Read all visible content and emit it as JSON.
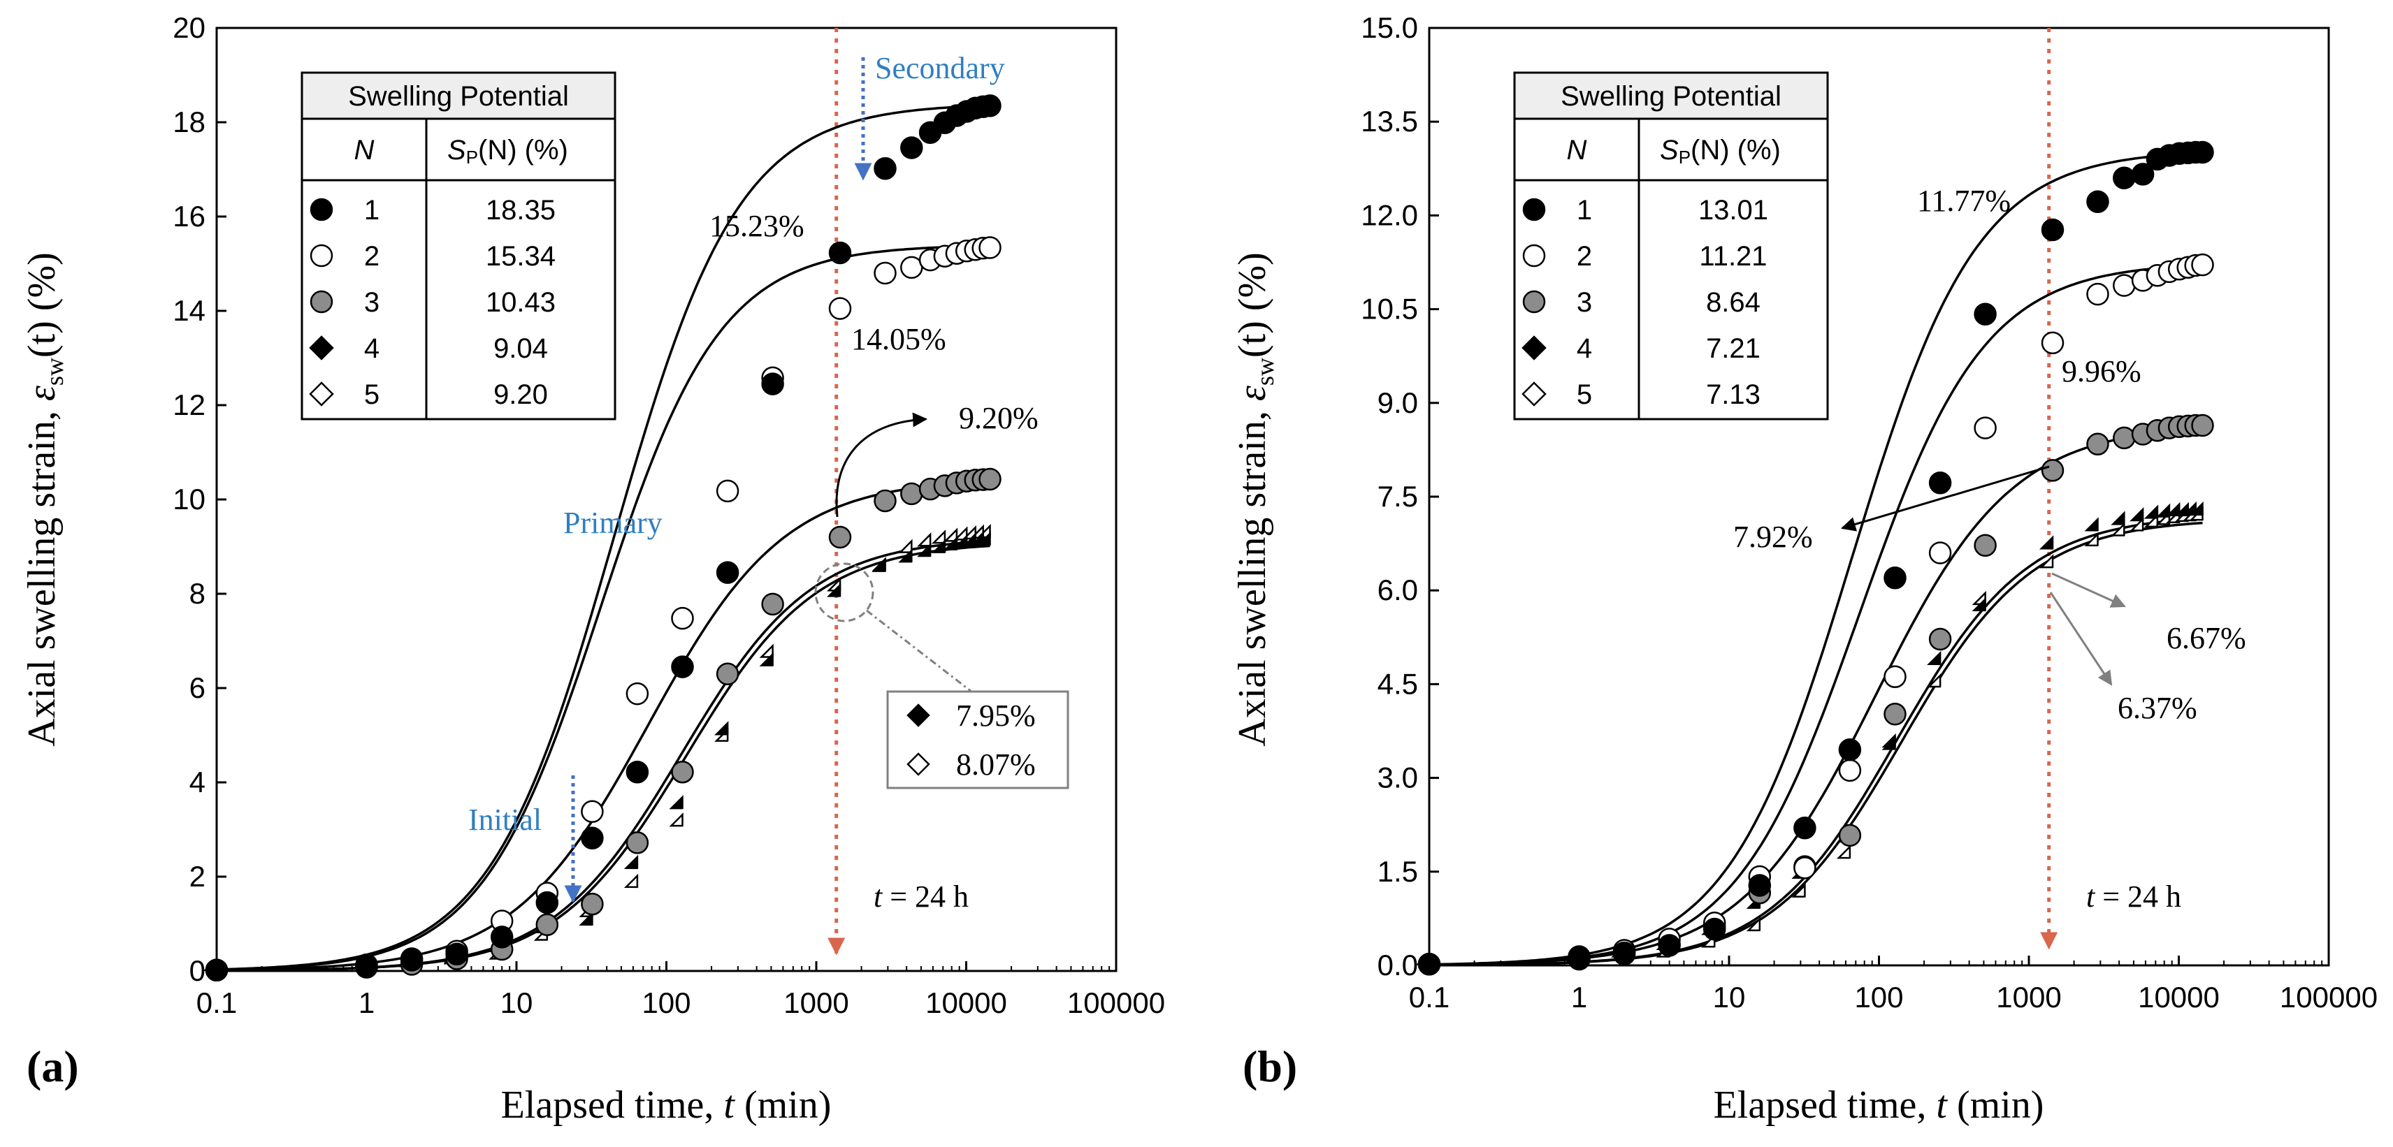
{
  "colors": {
    "axis": "#000000",
    "curve": "#000000",
    "marker_filled_dark": "#000000",
    "marker_filled_gray": "#8c8c8c",
    "marker_open": "#ffffff",
    "guide_line": "#d9664d",
    "stage_label": "#2f7fc1",
    "arrow_blue": "#4472c4",
    "arrow_gray": "#808080",
    "legend_header_bg": "#eeeeee"
  },
  "chart_data": [
    {
      "type": "scatter",
      "panel_label": "(a)",
      "xscale": "log",
      "xlim": [
        0.1,
        100000
      ],
      "ylim": [
        0,
        20
      ],
      "xticks": [
        "0.1",
        "1",
        "10",
        "100",
        "1000",
        "10000",
        "100000"
      ],
      "yticks": [
        "0",
        "2",
        "4",
        "6",
        "8",
        "10",
        "12",
        "14",
        "16",
        "18",
        "20"
      ],
      "xlabel": "Elapsed time, t (min)",
      "xlabel_parts": {
        "prefix": "Elapsed time, ",
        "var": "t",
        "suffix": " (min)"
      },
      "ylabel": "Axial swelling strain, εsw(t) (%)",
      "ylabel_parts": {
        "prefix": "Axial swelling strain, ",
        "var": "ε",
        "sub": "sw",
        "arg": "(t)",
        "suffix": " (%)"
      },
      "vline": {
        "x": 1440,
        "label_var": "t",
        "label_rest": " = 24 h"
      },
      "legend": {
        "title": "Swelling Potential",
        "col1": "N",
        "col2_var": "S",
        "col2_sub": "P",
        "col2_rest": "(N)  (%)",
        "rows": [
          {
            "n": "1",
            "value": "18.35",
            "marker": "filled-circle"
          },
          {
            "n": "2",
            "value": "15.34",
            "marker": "open-circle"
          },
          {
            "n": "3",
            "value": "10.43",
            "marker": "gray-circle"
          },
          {
            "n": "4",
            "value": "9.04",
            "marker": "filled-diamond"
          },
          {
            "n": "5",
            "value": "9.20",
            "marker": "open-diamond"
          }
        ]
      },
      "stage_labels": {
        "initial": "Initial",
        "primary": "Primary",
        "secondary": "Secondary"
      },
      "annotations": [
        "15.23%",
        "14.05%",
        "9.20%"
      ],
      "inset_box": [
        {
          "marker": "filled-diamond",
          "text": "7.95%"
        },
        {
          "marker": "open-diamond",
          "text": "8.07%"
        }
      ],
      "x": [
        0.1,
        1,
        2,
        4,
        8,
        16,
        32,
        64,
        128,
        256,
        512,
        1440,
        2880,
        4320,
        5760,
        7200,
        8640,
        10080,
        11520,
        12960,
        14400
      ],
      "series": [
        {
          "name": "N=1",
          "marker": "filled-circle",
          "y": [
            0.02,
            0.13,
            0.23,
            0.36,
            0.72,
            1.45,
            2.82,
            4.22,
            6.45,
            8.45,
            12.45,
            15.23,
            17.02,
            17.46,
            17.78,
            17.99,
            18.14,
            18.23,
            18.3,
            18.33,
            18.35
          ],
          "fit": {
            "a": 18.4,
            "b": 2.4,
            "x0": 1.65
          }
        },
        {
          "name": "N=2",
          "marker": "open-circle",
          "y": [
            0.02,
            0.1,
            0.26,
            0.42,
            1.06,
            1.65,
            3.38,
            5.88,
            7.48,
            10.18,
            12.58,
            14.05,
            14.8,
            14.92,
            15.08,
            15.16,
            15.22,
            15.27,
            15.3,
            15.33,
            15.34
          ],
          "fit": {
            "a": 15.4,
            "b": 2.5,
            "x0": 1.56
          }
        },
        {
          "name": "N=3",
          "marker": "gray-circle",
          "y": [
            0.02,
            0.08,
            0.14,
            0.26,
            0.46,
            0.98,
            1.42,
            2.72,
            4.22,
            6.3,
            7.78,
            9.2,
            9.97,
            10.12,
            10.22,
            10.29,
            10.35,
            10.39,
            10.41,
            10.42,
            10.43
          ],
          "fit": {
            "a": 10.45,
            "b": 2.2,
            "x0": 1.88
          }
        },
        {
          "name": "N=4",
          "marker": "filled-diamond",
          "y": [
            0.02,
            0.06,
            0.12,
            0.18,
            0.42,
            0.82,
            0.98,
            2.18,
            3.45,
            5.02,
            6.48,
            7.95,
            8.48,
            8.68,
            8.8,
            8.88,
            8.94,
            8.98,
            9.01,
            9.03,
            9.04
          ],
          "fit": {
            "a": 9.1,
            "b": 2.3,
            "x0": 2.13
          }
        },
        {
          "name": "N=5",
          "marker": "open-diamond",
          "y": [
            0.02,
            0.05,
            0.1,
            0.16,
            0.26,
            0.66,
            1.16,
            1.78,
            3.08,
            4.88,
            6.66,
            8.07,
            8.5,
            8.88,
            9.02,
            9.08,
            9.12,
            9.15,
            9.17,
            9.19,
            9.2
          ],
          "fit": {
            "a": 9.2,
            "b": 2.3,
            "x0": 2.1
          }
        }
      ]
    },
    {
      "type": "scatter",
      "panel_label": "(b)",
      "xscale": "log",
      "xlim": [
        0.1,
        100000
      ],
      "ylim": [
        0,
        15
      ],
      "xticks": [
        "0.1",
        "1",
        "10",
        "100",
        "1000",
        "10000",
        "100000"
      ],
      "yticks": [
        "0.0",
        "1.5",
        "3.0",
        "4.5",
        "6.0",
        "7.5",
        "9.0",
        "10.5",
        "12.0",
        "13.5",
        "15.0"
      ],
      "xlabel": "Elapsed time, t (min)",
      "xlabel_parts": {
        "prefix": "Elapsed time, ",
        "var": "t",
        "suffix": " (min)"
      },
      "ylabel": "Axial swelling strain, εsw(t) (%)",
      "ylabel_parts": {
        "prefix": "Axial swelling strain, ",
        "var": "ε",
        "sub": "sw",
        "arg": "(t)",
        "suffix": " (%)"
      },
      "vline": {
        "x": 1440,
        "label_var": "t",
        "label_rest": " = 24 h"
      },
      "legend": {
        "title": "Swelling Potential",
        "col1": "N",
        "col2_var": "S",
        "col2_sub": "P",
        "col2_rest": "(N)  (%)",
        "rows": [
          {
            "n": "1",
            "value": "13.01",
            "marker": "filled-circle"
          },
          {
            "n": "2",
            "value": "11.21",
            "marker": "open-circle"
          },
          {
            "n": "3",
            "value": "8.64",
            "marker": "gray-circle"
          },
          {
            "n": "4",
            "value": "7.21",
            "marker": "filled-diamond"
          },
          {
            "n": "5",
            "value": "7.13",
            "marker": "open-diamond"
          }
        ]
      },
      "annotations": [
        "11.77%",
        "9.96%",
        "7.92%",
        "6.67%",
        "6.37%"
      ],
      "x": [
        0.1,
        1,
        2,
        4,
        8,
        16,
        32,
        64,
        128,
        256,
        512,
        1440,
        2880,
        4320,
        5760,
        7200,
        8640,
        10080,
        11520,
        12960,
        14400
      ],
      "series": [
        {
          "name": "N=1",
          "marker": "filled-circle",
          "y": [
            0.02,
            0.12,
            0.2,
            0.32,
            0.58,
            1.28,
            2.2,
            3.45,
            6.2,
            7.72,
            10.42,
            11.77,
            12.22,
            12.6,
            12.66,
            12.9,
            12.96,
            12.99,
            13.0,
            13.01,
            13.01
          ],
          "fit": {
            "a": 13.05,
            "b": 2.4,
            "x0": 1.82
          }
        },
        {
          "name": "N=2",
          "marker": "open-circle",
          "y": [
            0.02,
            0.14,
            0.24,
            0.42,
            0.68,
            1.42,
            1.56,
            3.12,
            4.62,
            6.6,
            8.6,
            9.96,
            10.74,
            10.88,
            10.96,
            11.04,
            11.1,
            11.14,
            11.17,
            11.2,
            11.21
          ],
          "fit": {
            "a": 11.25,
            "b": 2.4,
            "x0": 1.87
          }
        },
        {
          "name": "N=3",
          "marker": "gray-circle",
          "y": [
            0.02,
            0.1,
            0.18,
            0.34,
            0.62,
            1.16,
            1.58,
            2.08,
            4.02,
            5.22,
            6.72,
            7.92,
            8.34,
            8.44,
            8.5,
            8.56,
            8.6,
            8.62,
            8.63,
            8.64,
            8.64
          ],
          "fit": {
            "a": 8.66,
            "b": 2.2,
            "x0": 1.98
          }
        },
        {
          "name": "N=4",
          "marker": "filled-diamond",
          "y": [
            0.02,
            0.08,
            0.14,
            0.26,
            0.5,
            0.92,
            1.4,
            1.98,
            3.46,
            4.82,
            5.68,
            6.67,
            6.96,
            7.06,
            7.12,
            7.16,
            7.18,
            7.2,
            7.2,
            7.21,
            7.21
          ],
          "fit": {
            "a": 7.22,
            "b": 2.3,
            "x0": 2.12
          }
        },
        {
          "name": "N=5",
          "marker": "open-diamond",
          "y": [
            0.02,
            0.06,
            0.08,
            0.14,
            0.3,
            0.56,
            1.1,
            1.72,
            3.5,
            4.46,
            5.78,
            6.37,
            6.72,
            6.88,
            6.96,
            7.02,
            7.06,
            7.09,
            7.11,
            7.12,
            7.13
          ],
          "fit": {
            "a": 7.15,
            "b": 2.3,
            "x0": 2.15
          }
        }
      ]
    }
  ]
}
